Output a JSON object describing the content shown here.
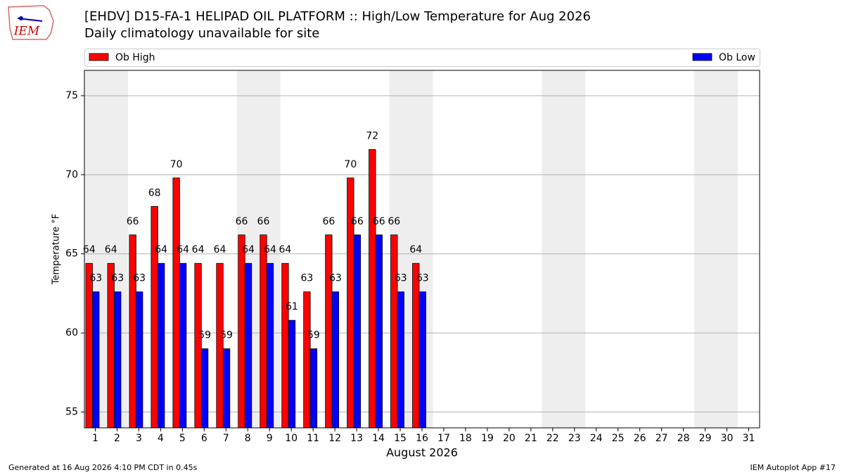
{
  "logo_text": "IEM",
  "footer_left": "Generated at 16 Aug 2026 4:10 PM CDT in 0.45s",
  "footer_right": "IEM Autoplot App #17",
  "chart_data": {
    "type": "bar",
    "title": "[EHDV] D15-FA-1 HELIPAD OIL PLATFORM :: High/Low Temperature for Aug 2026",
    "subtitle": "Daily climatology unavailable for site",
    "xlabel": "August 2026",
    "ylabel": "Temperature °F",
    "x": [
      1,
      2,
      3,
      4,
      5,
      6,
      7,
      8,
      9,
      10,
      11,
      12,
      13,
      14,
      15,
      16,
      17,
      18,
      19,
      20,
      21,
      22,
      23,
      24,
      25,
      26,
      27,
      28,
      29,
      30,
      31
    ],
    "xlim": [
      0.5,
      31.5
    ],
    "ylim": [
      54,
      76.6
    ],
    "yticks": [
      55,
      60,
      65,
      70,
      75
    ],
    "grid": true,
    "legend": "top",
    "series": [
      {
        "name": "Ob High",
        "color": "#ff0000",
        "values": [
          64.4,
          64.4,
          66.2,
          68,
          69.8,
          64.4,
          64.4,
          66.2,
          66.2,
          64.4,
          62.6,
          66.2,
          69.8,
          71.6,
          66.2,
          64.4,
          null,
          null,
          null,
          null,
          null,
          null,
          null,
          null,
          null,
          null,
          null,
          null,
          null,
          null,
          null
        ],
        "value_labels": [
          "64",
          "64",
          "66",
          "68",
          "70",
          "64",
          "64",
          "66",
          "66",
          "64",
          "63",
          "66",
          "70",
          "72",
          "66",
          "64",
          null,
          null,
          null,
          null,
          null,
          null,
          null,
          null,
          null,
          null,
          null,
          null,
          null,
          null,
          null
        ]
      },
      {
        "name": "Ob Low",
        "color": "#0000ff",
        "values": [
          62.6,
          62.6,
          62.6,
          64.4,
          64.4,
          59,
          59,
          64.4,
          64.4,
          60.8,
          59,
          62.6,
          66.2,
          66.2,
          62.6,
          62.6,
          null,
          null,
          null,
          null,
          null,
          null,
          null,
          null,
          null,
          null,
          null,
          null,
          null,
          null,
          null
        ],
        "value_labels": [
          "63",
          "63",
          "63",
          "64",
          "64",
          "59",
          "59",
          "64",
          "64",
          "61",
          "59",
          "63",
          "66",
          "66",
          "63",
          "63",
          null,
          null,
          null,
          null,
          null,
          null,
          null,
          null,
          null,
          null,
          null,
          null,
          null,
          null,
          null
        ]
      }
    ]
  }
}
